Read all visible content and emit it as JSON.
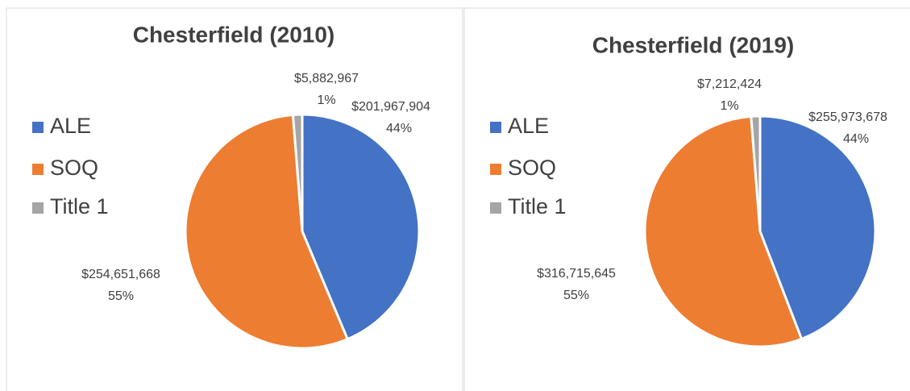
{
  "chart_data": [
    {
      "type": "pie",
      "title": "Chesterfield (2010)",
      "categories": [
        "ALE",
        "SOQ",
        "Title 1"
      ],
      "values": [
        201967904,
        254651668,
        5882967
      ],
      "value_labels": [
        "$201,967,904",
        "$254,651,668",
        "$5,882,967"
      ],
      "percent_labels": [
        "44%",
        "55%",
        "1%"
      ],
      "colors": [
        "#4472c4",
        "#ed7d31",
        "#a5a5a5"
      ],
      "legend": "left"
    },
    {
      "type": "pie",
      "title": "Chesterfield (2019)",
      "categories": [
        "ALE",
        "SOQ",
        "Title 1"
      ],
      "values": [
        255973678,
        316715645,
        7212424
      ],
      "value_labels": [
        "$255,973,678",
        "$316,715,645",
        "$7,212,424"
      ],
      "percent_labels": [
        "44%",
        "55%",
        "1%"
      ],
      "colors": [
        "#4472c4",
        "#ed7d31",
        "#a5a5a5"
      ],
      "legend": "left"
    }
  ]
}
